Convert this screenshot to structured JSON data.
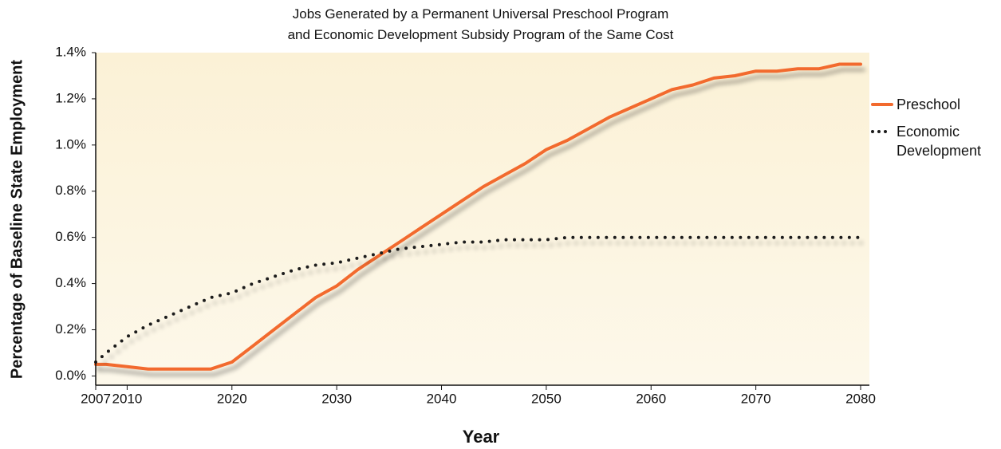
{
  "chart_data": {
    "type": "line",
    "title": [
      "Jobs Generated by a Permanent Universal Preschool Program",
      "and Economic Development Subsidy Program of the Same Cost"
    ],
    "xlabel": "Year",
    "ylabel": "Percentage of Baseline State Employment",
    "x": [
      2007,
      2008,
      2010,
      2012,
      2014,
      2016,
      2018,
      2020,
      2022,
      2024,
      2026,
      2028,
      2030,
      2032,
      2034,
      2036,
      2038,
      2040,
      2042,
      2044,
      2046,
      2048,
      2050,
      2052,
      2054,
      2056,
      2058,
      2060,
      2062,
      2064,
      2066,
      2068,
      2070,
      2072,
      2074,
      2076,
      2078,
      2080
    ],
    "series": [
      {
        "name": "Preschool",
        "color": "#f26a2e",
        "style": "solid",
        "values": [
          0.05,
          0.05,
          0.04,
          0.03,
          0.03,
          0.03,
          0.03,
          0.06,
          0.13,
          0.2,
          0.27,
          0.34,
          0.39,
          0.46,
          0.52,
          0.58,
          0.64,
          0.7,
          0.76,
          0.82,
          0.87,
          0.92,
          0.98,
          1.02,
          1.07,
          1.12,
          1.16,
          1.2,
          1.24,
          1.26,
          1.29,
          1.3,
          1.32,
          1.32,
          1.33,
          1.33,
          1.35,
          1.35
        ]
      },
      {
        "name": "Economic Development",
        "color": "#1a1a1a",
        "style": "dotted",
        "values": [
          0.06,
          0.1,
          0.17,
          0.22,
          0.26,
          0.3,
          0.34,
          0.36,
          0.4,
          0.43,
          0.46,
          0.48,
          0.49,
          0.51,
          0.53,
          0.55,
          0.56,
          0.57,
          0.58,
          0.58,
          0.59,
          0.59,
          0.59,
          0.6,
          0.6,
          0.6,
          0.6,
          0.6,
          0.6,
          0.6,
          0.6,
          0.6,
          0.6,
          0.6,
          0.6,
          0.6,
          0.6,
          0.6
        ]
      }
    ],
    "xlim": [
      2007,
      2080
    ],
    "xticks": [
      2007,
      2010,
      2020,
      2030,
      2040,
      2050,
      2060,
      2070,
      2080
    ],
    "ylim": [
      -0.04,
      1.4
    ],
    "yticks": [
      {
        "value": 0,
        "label": "0.0%"
      },
      {
        "value": 0.2,
        "label": "0.2%"
      },
      {
        "value": 0.4,
        "label": "0.4%"
      },
      {
        "value": 0.6,
        "label": "0.6%"
      },
      {
        "value": 0.8,
        "label": "0.8%"
      },
      {
        "value": 1.0,
        "label": "1.0%"
      },
      {
        "value": 1.2,
        "label": "1.2%"
      },
      {
        "value": 1.4,
        "label": "1.4%"
      }
    ],
    "legend": "right",
    "background": "#fcf5e1"
  }
}
